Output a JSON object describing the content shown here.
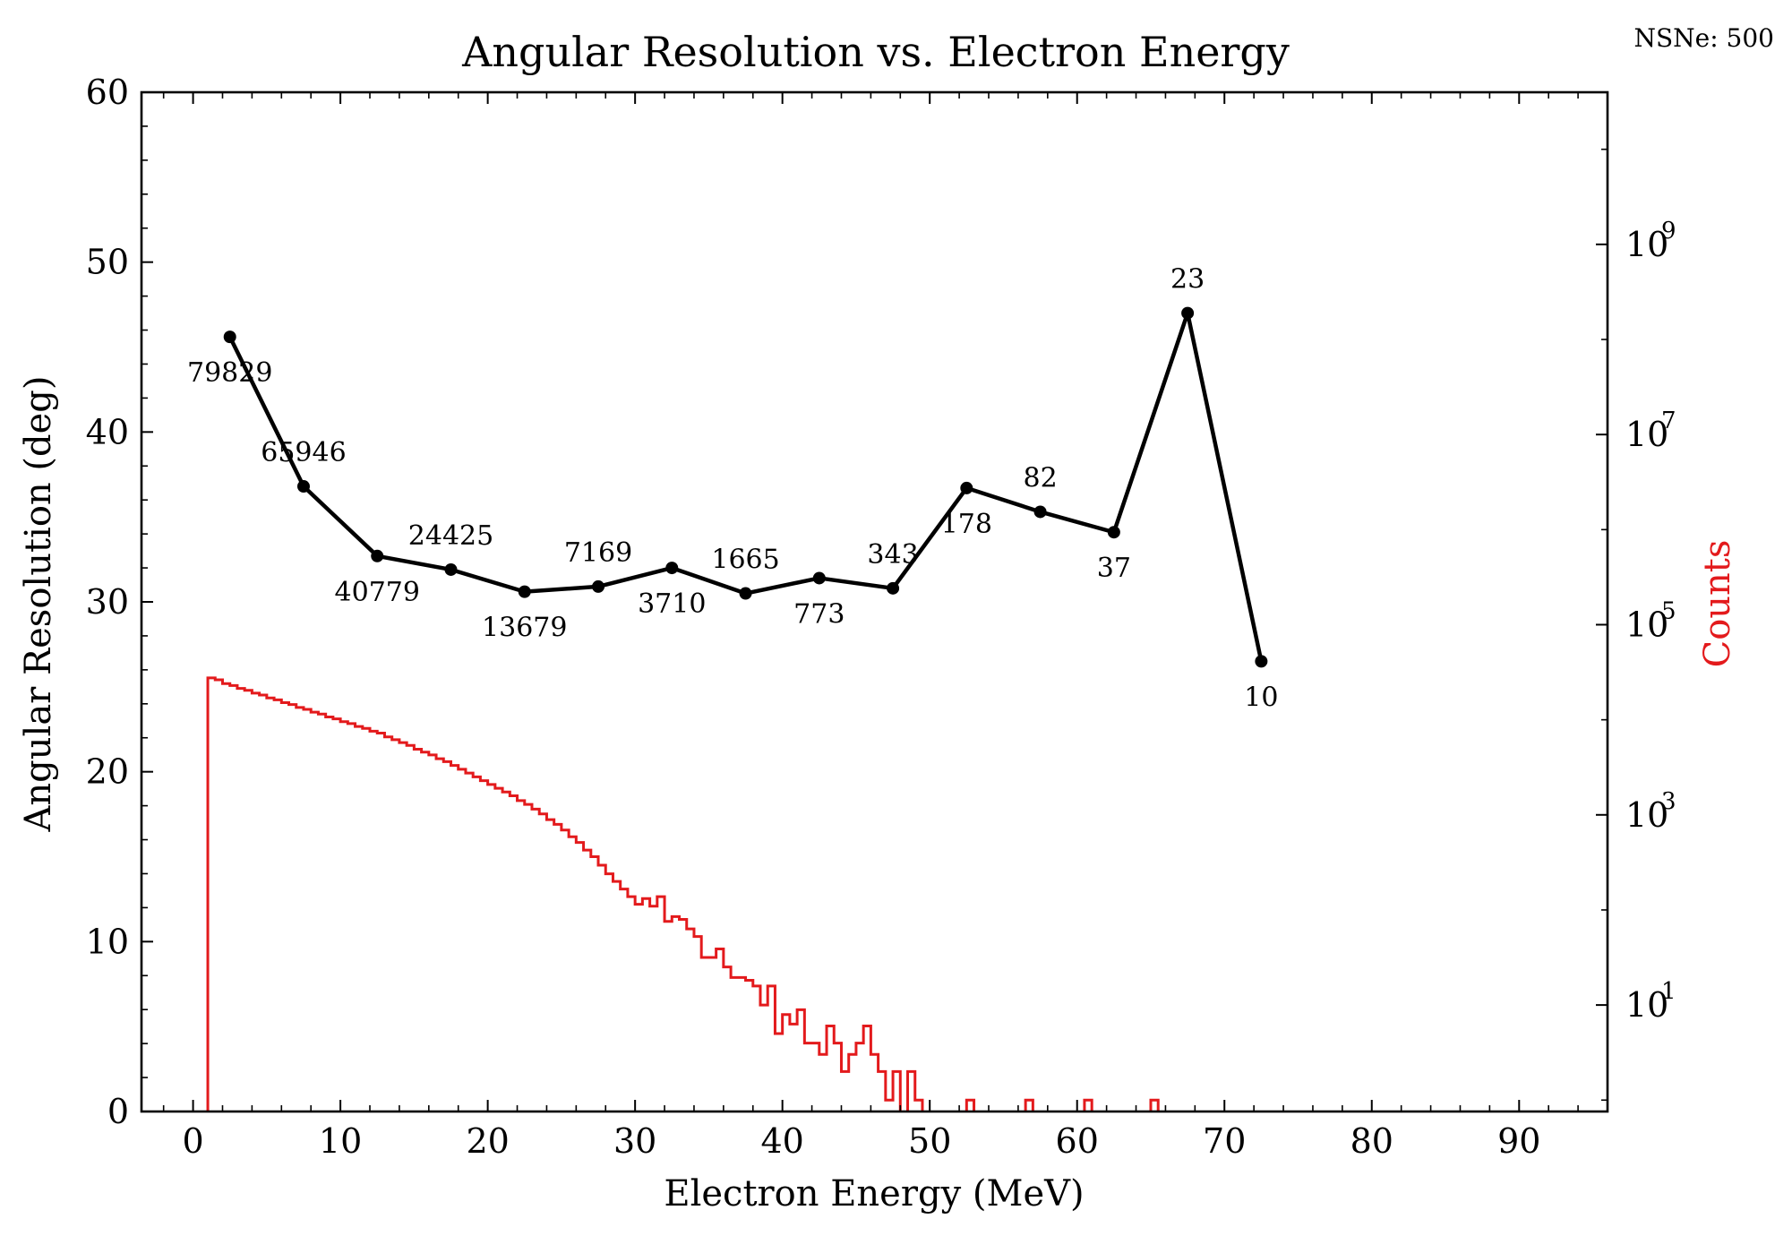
{
  "chart_data": {
    "type": "line",
    "title": "Angular Resolution vs. Electron Energy",
    "annotation": "NSNe: 500",
    "xlabel": "Electron Energy (MeV)",
    "ylabel": "Angular Resolution (deg)",
    "y2label": "Counts",
    "xlim": [
      -3.5,
      96
    ],
    "ylim": [
      0,
      60
    ],
    "y2lim_log10": [
      -0.12,
      10.6
    ],
    "y2scale": "log",
    "xticks": [
      0,
      10,
      20,
      30,
      40,
      50,
      60,
      70,
      80,
      90
    ],
    "yticks": [
      0,
      10,
      20,
      30,
      40,
      50,
      60
    ],
    "y2ticks": [
      {
        "base": "10",
        "exp": "1",
        "log10": 1
      },
      {
        "base": "10",
        "exp": "3",
        "log10": 3
      },
      {
        "base": "10",
        "exp": "5",
        "log10": 5
      },
      {
        "base": "10",
        "exp": "7",
        "log10": 7
      },
      {
        "base": "10",
        "exp": "9",
        "log10": 9
      }
    ],
    "grid": false,
    "colors": {
      "resolution": "#000000",
      "histogram": "#e31a1c"
    },
    "series": [
      {
        "x": [
          2.5,
          7.5,
          12.5,
          17.5,
          22.5,
          27.5,
          32.5,
          37.5,
          42.5,
          47.5,
          52.5,
          57.5,
          62.5,
          67.5,
          72.5
        ],
        "values": [
          45.6,
          36.8,
          32.7,
          31.9,
          30.6,
          30.9,
          32.0,
          30.5,
          31.4,
          30.8,
          36.7,
          35.3,
          34.1,
          47.0,
          26.5
        ],
        "labels": [
          "79829",
          "65946",
          "40779",
          "24425",
          "13679",
          "7169",
          "3710",
          "1665",
          "773",
          "343",
          "178",
          "82",
          "37",
          "23",
          "10"
        ],
        "label_pos": [
          "below",
          "above",
          "below",
          "above",
          "below",
          "above",
          "below",
          "above",
          "below",
          "above",
          "below",
          "above",
          "below",
          "above",
          "below"
        ]
      },
      {
        "type": "step",
        "bin_width": 0.5,
        "start": 1.0,
        "log10_counts": [
          4.44,
          4.42,
          4.38,
          4.36,
          4.33,
          4.31,
          4.28,
          4.26,
          4.23,
          4.21,
          4.18,
          4.16,
          4.13,
          4.11,
          4.08,
          4.06,
          4.03,
          4.01,
          3.98,
          3.96,
          3.93,
          3.91,
          3.88,
          3.86,
          3.82,
          3.79,
          3.76,
          3.73,
          3.69,
          3.66,
          3.63,
          3.59,
          3.56,
          3.52,
          3.48,
          3.44,
          3.4,
          3.36,
          3.32,
          3.28,
          3.24,
          3.2,
          3.15,
          3.11,
          3.06,
          3.01,
          2.95,
          2.9,
          2.84,
          2.77,
          2.71,
          2.63,
          2.56,
          2.47,
          2.38,
          2.3,
          2.22,
          2.14,
          2.06,
          2.12,
          2.04,
          2.14,
          1.88,
          1.93,
          1.9,
          1.8,
          1.72,
          1.5,
          1.5,
          1.59,
          1.4,
          1.29,
          1.29,
          1.26,
          1.2,
          1.0,
          1.2,
          0.7,
          0.9,
          0.8,
          0.95,
          0.6,
          0.6,
          0.48,
          0.78,
          0.6,
          0.3,
          0.48,
          0.6,
          0.78,
          0.48,
          0.3,
          0.0,
          0.3,
          -2,
          0.3,
          0.0,
          -2,
          -2,
          -2,
          -2,
          -2,
          -2,
          0.0,
          -2,
          -2,
          -2,
          -2,
          -2,
          -2,
          -2,
          0.0,
          -2,
          -2,
          -2,
          -2,
          -2,
          -2,
          -2,
          0.0,
          -2,
          -2,
          -2,
          -2,
          -2,
          -2,
          -2,
          -2,
          0.0,
          -2,
          -2,
          -2
        ]
      }
    ]
  }
}
